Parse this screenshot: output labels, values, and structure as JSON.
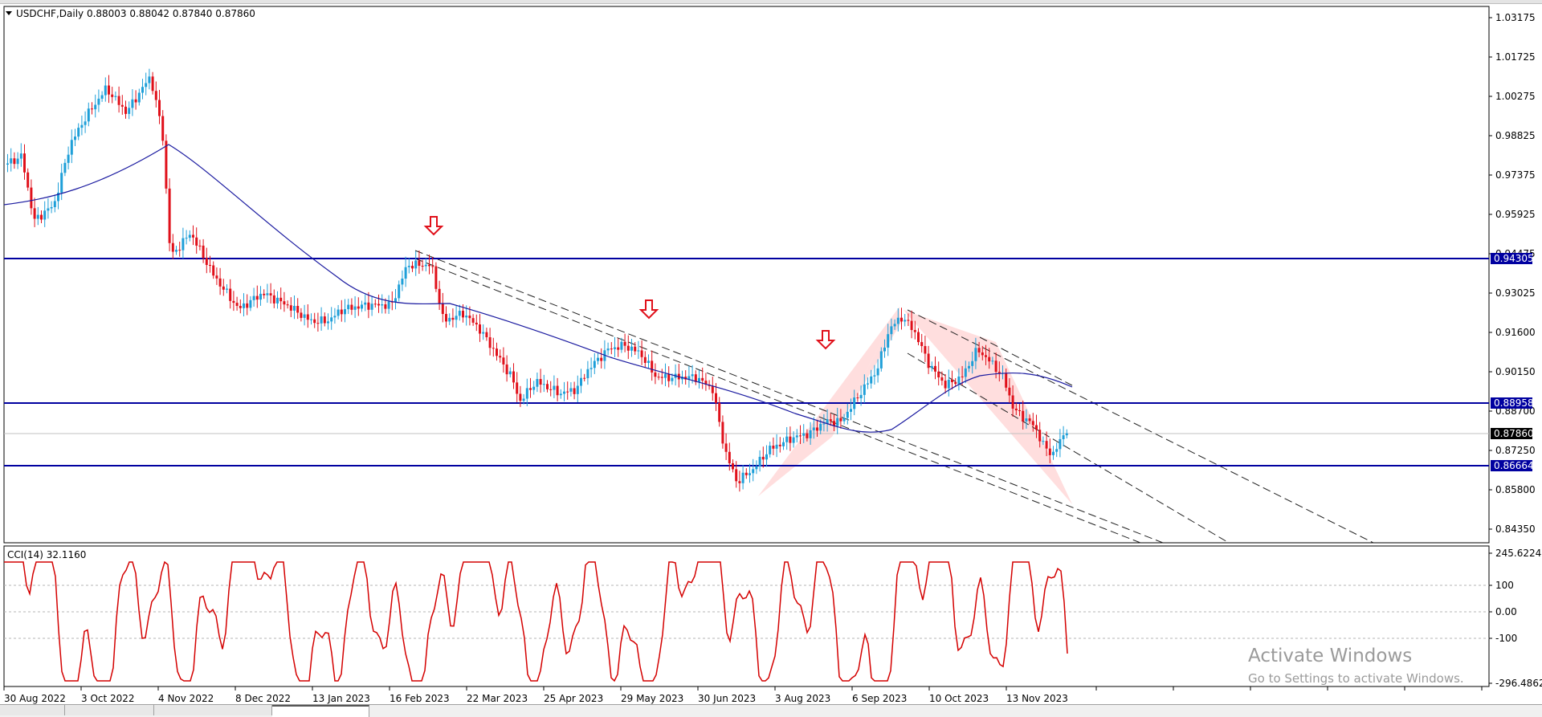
{
  "window": {
    "symbol_header": "USDCHF,Daily  0.88003 0.88042 0.87840 0.87860"
  },
  "main_chart": {
    "price_ticks": [
      "1.03175",
      "1.01725",
      "1.00275",
      "0.98825",
      "0.97375",
      "0.95925",
      "0.94475",
      "0.93025",
      "0.91600",
      "0.90150",
      "0.88700",
      "0.87250",
      "0.85800",
      "0.84350"
    ],
    "levels": [
      {
        "label": "0.94305",
        "color": "#0000a0"
      },
      {
        "label": "0.88958",
        "color": "#0000a0"
      },
      {
        "label": "0.86664",
        "color": "#0000a0"
      }
    ],
    "current_price": "0.87860",
    "candle_up_color": "#1e9fd8",
    "candle_down_color": "#e0101a",
    "ma_color": "#1a1aa0",
    "pattern_fill": "#ffd6d6",
    "arrow_color": "#e0101a"
  },
  "indicator": {
    "title": "CCI(14) 32.1160",
    "ticks": [
      "245.6224",
      "100",
      "0.00",
      "-100",
      "-296.4862"
    ],
    "line_color": "#d40000"
  },
  "time_axis": {
    "labels": [
      "30 Aug 2022",
      "3 Oct 2022",
      "4 Nov 2022",
      "8 Dec 2022",
      "13 Jan 2023",
      "16 Feb 2023",
      "22 Mar 2023",
      "25 Apr 2023",
      "29 May 2023",
      "30 Jun 2023",
      "3 Aug 2023",
      "6 Sep 2023",
      "10 Oct 2023",
      "13 Nov 2023"
    ]
  },
  "watermark": {
    "line1": "Activate Windows",
    "line2": "Go to Settings to activate Windows."
  }
}
